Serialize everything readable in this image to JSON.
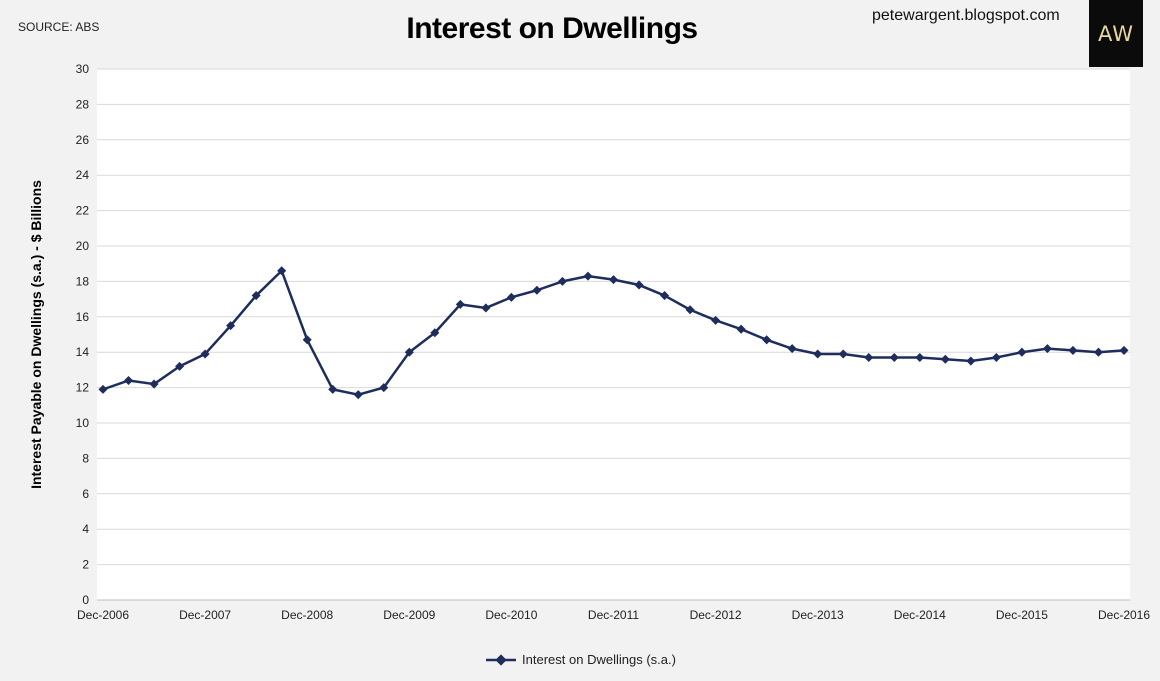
{
  "header": {
    "source": "SOURCE: ABS",
    "blog": "petewargent.blogspot.com",
    "logo_text": "AW"
  },
  "colors": {
    "series": "#1f2d5c",
    "grid": "#d9d9d9",
    "plot_bg": "#ffffff"
  },
  "chart_data": {
    "type": "line",
    "title": "Interest on Dwellings",
    "ylabel": "Interest Payable on Dwellings (s.a.) - $ Billions",
    "xlabel": "",
    "ylim": [
      0,
      30
    ],
    "yticks": [
      0,
      2,
      4,
      6,
      8,
      10,
      12,
      14,
      16,
      18,
      20,
      22,
      24,
      26,
      28,
      30
    ],
    "grid": true,
    "legend_position": "bottom",
    "x": [
      "Dec-2006",
      "Mar-2007",
      "Jun-2007",
      "Sep-2007",
      "Dec-2007",
      "Mar-2008",
      "Jun-2008",
      "Sep-2008",
      "Dec-2008",
      "Mar-2009",
      "Jun-2009",
      "Sep-2009",
      "Dec-2009",
      "Mar-2010",
      "Jun-2010",
      "Sep-2010",
      "Dec-2010",
      "Mar-2011",
      "Jun-2011",
      "Sep-2011",
      "Dec-2011",
      "Mar-2012",
      "Jun-2012",
      "Sep-2012",
      "Dec-2012",
      "Mar-2013",
      "Jun-2013",
      "Sep-2013",
      "Dec-2013",
      "Mar-2014",
      "Jun-2014",
      "Sep-2014",
      "Dec-2014",
      "Mar-2015",
      "Jun-2015",
      "Sep-2015",
      "Dec-2015",
      "Mar-2016",
      "Jun-2016",
      "Sep-2016",
      "Dec-2016"
    ],
    "xtick_labels": [
      "Dec-2006",
      "Dec-2007",
      "Dec-2008",
      "Dec-2009",
      "Dec-2010",
      "Dec-2011",
      "Dec-2012",
      "Dec-2013",
      "Dec-2014",
      "Dec-2015",
      "Dec-2016"
    ],
    "series": [
      {
        "name": "Interest on Dwellings (s.a.)",
        "values": [
          11.9,
          12.4,
          12.2,
          13.2,
          13.9,
          15.5,
          17.2,
          18.6,
          14.7,
          11.9,
          11.6,
          12.0,
          14.0,
          15.1,
          16.7,
          16.5,
          17.1,
          17.5,
          18.0,
          18.3,
          18.1,
          17.8,
          17.2,
          16.4,
          15.8,
          15.3,
          14.7,
          14.2,
          13.9,
          13.9,
          13.7,
          13.7,
          13.7,
          13.6,
          13.5,
          13.7,
          14.0,
          14.2,
          14.1,
          14.0,
          14.1
        ]
      }
    ]
  }
}
